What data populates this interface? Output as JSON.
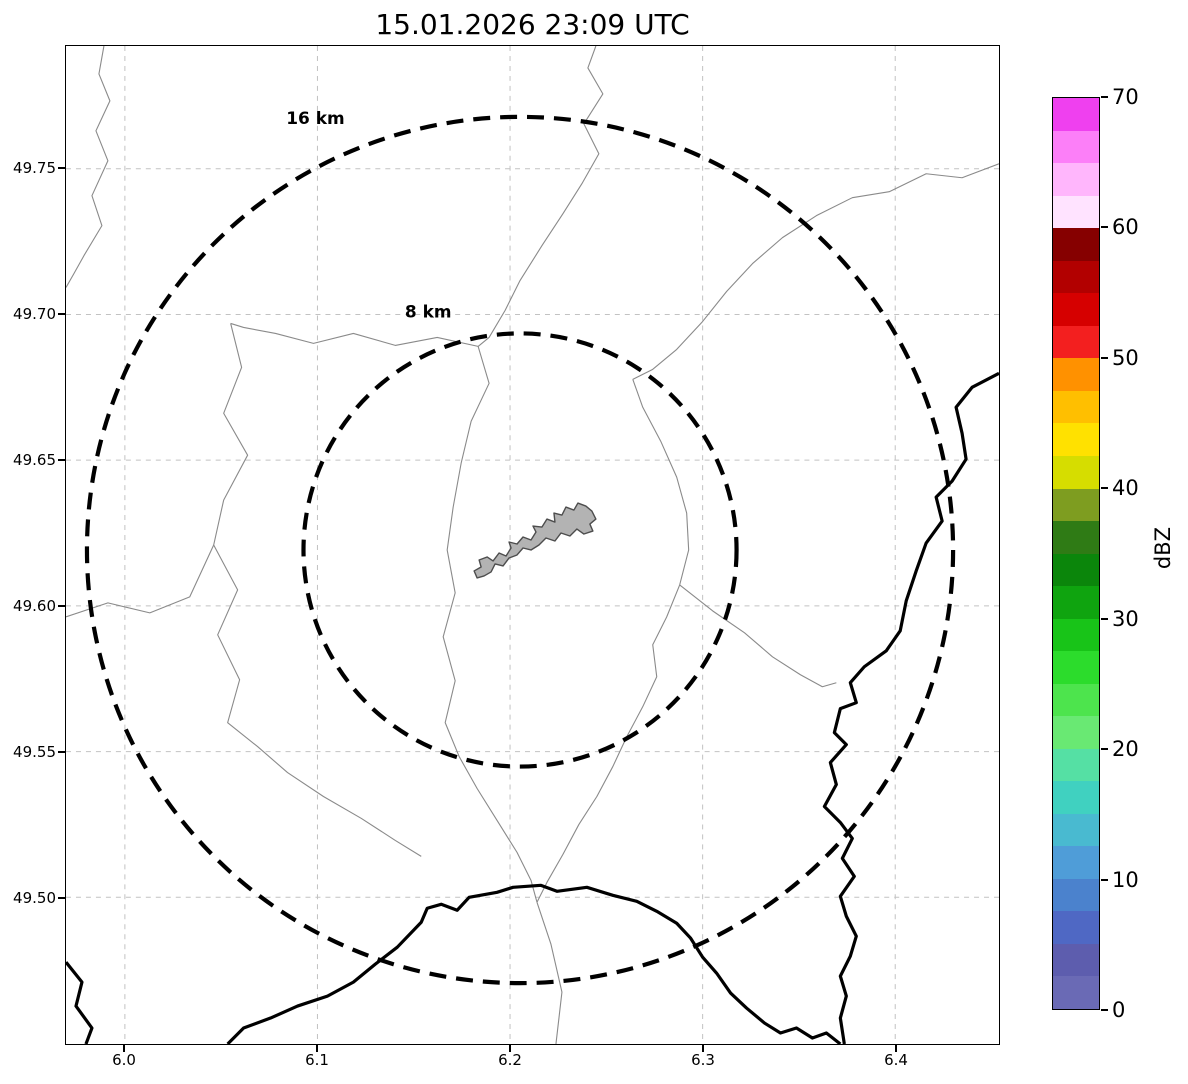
{
  "title": "15.01.2026 23:09 UTC",
  "axes": {
    "x_ticks": [
      "6.0",
      "6.1",
      "6.2",
      "6.3",
      "6.4"
    ],
    "y_ticks": [
      "49.75",
      "49.70",
      "49.65",
      "49.60",
      "49.55",
      "49.50"
    ]
  },
  "map": {
    "range_rings": [
      {
        "label": "16 km"
      },
      {
        "label": "8 km"
      }
    ]
  },
  "colorbar": {
    "unit_label": "dBZ",
    "value_range": [
      0,
      70
    ],
    "ticks": [
      "70",
      "60",
      "50",
      "40",
      "30",
      "20",
      "10",
      "0"
    ],
    "segments_bottom_to_top": [
      "#6a6ab5",
      "#5d5dae",
      "#4f68c4",
      "#4b82cd",
      "#4f9dd8",
      "#49bad0",
      "#40d1c0",
      "#55e0a4",
      "#69e973",
      "#4de44d",
      "#2cdc2c",
      "#18c418",
      "#0fa40f",
      "#0b860b",
      "#2f7b15",
      "#7e9d20",
      "#d6dd00",
      "#ffe100",
      "#ffbf00",
      "#ff9100",
      "#f31f1f",
      "#d60000",
      "#b20000",
      "#860000",
      "#ffe3ff",
      "#ffb6fc",
      "#fc7ff8",
      "#ef40ef"
    ]
  }
}
